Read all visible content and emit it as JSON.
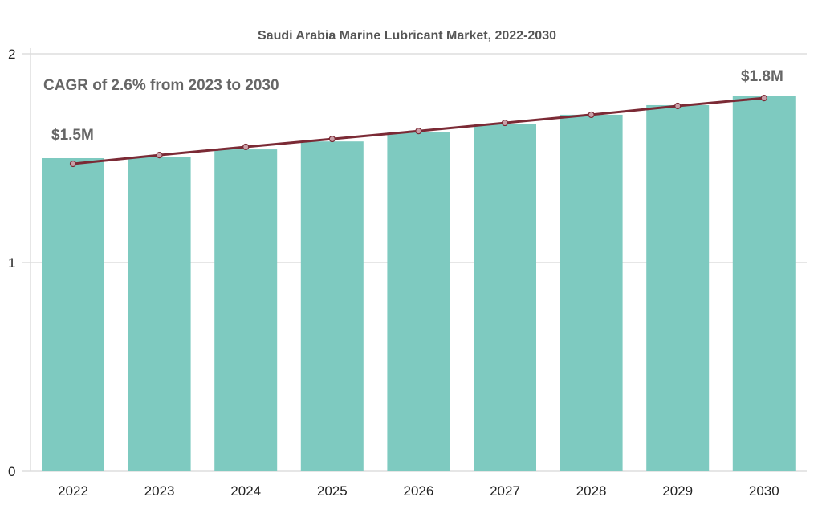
{
  "chart_data": {
    "type": "bar",
    "title": "Saudi Arabia Marine Lubricant Market, 2022-2030",
    "xlabel": "",
    "ylabel": "",
    "categories": [
      "2022",
      "2023",
      "2024",
      "2025",
      "2026",
      "2027",
      "2028",
      "2029",
      "2030"
    ],
    "values": [
      1.5,
      1.504,
      1.542,
      1.58,
      1.623,
      1.665,
      1.708,
      1.754,
      1.8
    ],
    "trend_line": [
      1.473,
      1.515,
      1.554,
      1.592,
      1.63,
      1.669,
      1.708,
      1.75,
      1.788
    ],
    "ylim": [
      0,
      2
    ],
    "yticks": [
      "0",
      "1",
      "2"
    ],
    "grid": true,
    "annotations": {
      "cagr": "CAGR of 2.6% from 2023 to 2030",
      "start_label": "$1.5M",
      "end_label": "$1.8M"
    },
    "colors": {
      "bar": "#7ecac0",
      "line": "#7b2a35",
      "grid": "#dddddd"
    }
  }
}
